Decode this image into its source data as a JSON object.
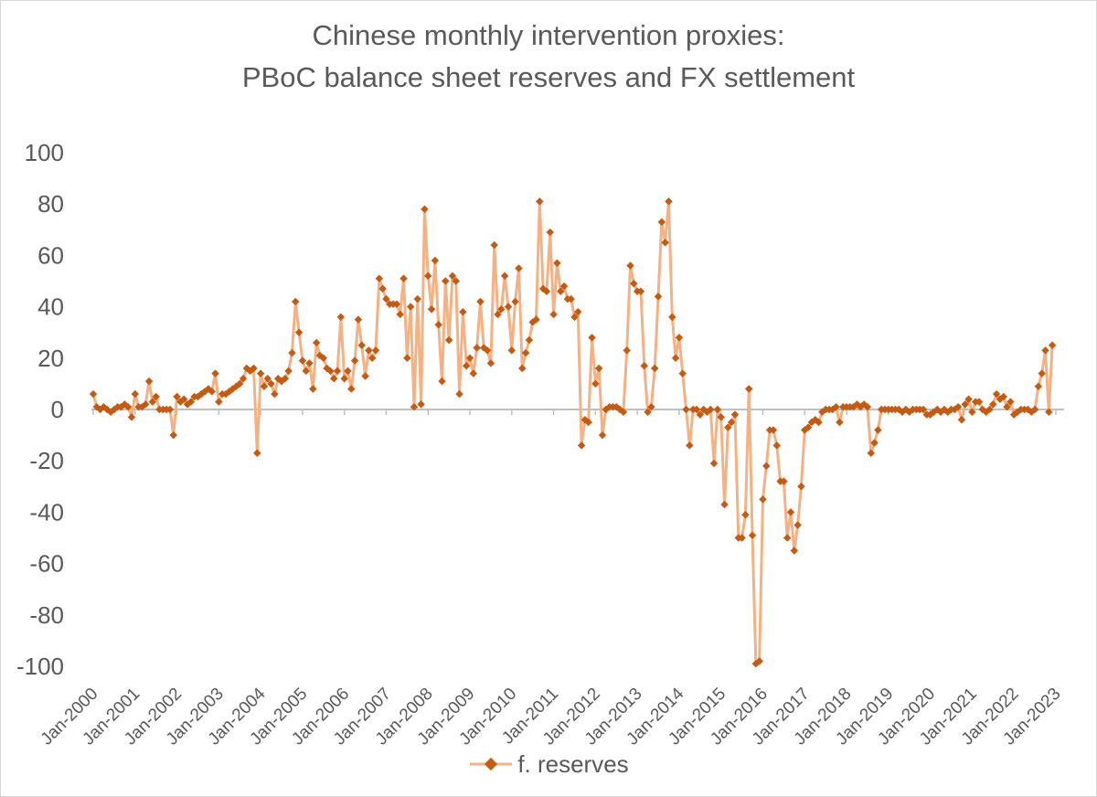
{
  "chart_data": {
    "type": "line",
    "title": "Chinese monthly intervention proxies:",
    "subtitle": "PBoC balance sheet reserves and FX settlement",
    "xlabel": "",
    "ylabel": "",
    "ylim": [
      -100,
      100
    ],
    "yticks": [
      "100",
      "80",
      "60",
      "40",
      "20",
      "0",
      "-20",
      "-40",
      "-60",
      "-80",
      "-100"
    ],
    "xticks": [
      "Jan-2000",
      "Jan-2001",
      "Jan-2002",
      "Jan-2003",
      "Jan-2004",
      "Jan-2005",
      "Jan-2006",
      "Jan-2007",
      "Jan-2008",
      "Jan-2009",
      "Jan-2010",
      "Jan-2011",
      "Jan-2012",
      "Jan-2013",
      "Jan-2014",
      "Jan-2015",
      "Jan-2016",
      "Jan-2017",
      "Jan-2018",
      "Jan-2019",
      "Jan-2020",
      "Jan-2021",
      "Jan-2022",
      "Jan-2023"
    ],
    "x_start": "Jan-2000",
    "frequency": "monthly",
    "grid": false,
    "legend_position": "bottom",
    "line_color": "#f4b183",
    "marker_color": "#c55a11",
    "axis_color": "#bfbfbf",
    "series": [
      {
        "name": "f. reserves",
        "values": [
          6,
          1,
          0,
          1,
          0,
          -1,
          0,
          1,
          1,
          2,
          1,
          -3,
          6,
          1,
          1,
          2,
          11,
          3,
          5,
          0,
          0,
          0,
          0,
          -10,
          5,
          3,
          4,
          2,
          3,
          5,
          5,
          6,
          7,
          8,
          7,
          14,
          3,
          6,
          6,
          7,
          8,
          9,
          10,
          12,
          16,
          15,
          16,
          -17,
          14,
          9,
          12,
          10,
          6,
          12,
          11,
          12,
          15,
          22,
          42,
          30,
          19,
          15,
          18,
          8,
          26,
          21,
          20,
          16,
          15,
          12,
          15,
          36,
          12,
          15,
          8,
          19,
          35,
          25,
          13,
          23,
          20,
          23,
          51,
          47,
          43,
          41,
          41,
          41,
          37,
          51,
          20,
          40,
          1,
          43,
          2,
          78,
          52,
          39,
          58,
          33,
          11,
          50,
          27,
          52,
          50,
          6,
          38,
          17,
          20,
          14,
          24,
          42,
          24,
          23,
          18,
          64,
          37,
          39,
          52,
          40,
          23,
          42,
          55,
          16,
          22,
          27,
          34,
          35,
          81,
          47,
          46,
          69,
          37,
          57,
          46,
          48,
          43,
          43,
          36,
          38,
          -14,
          -4,
          -5,
          28,
          10,
          16,
          -10,
          0,
          1,
          1,
          1,
          0,
          -1,
          23,
          56,
          49,
          46,
          46,
          17,
          -1,
          1,
          16,
          44,
          73,
          65,
          81,
          36,
          20,
          28,
          14,
          0,
          -14,
          0,
          0,
          -2,
          0,
          -1,
          0,
          -21,
          0,
          -3,
          -37,
          -7,
          -5,
          -2,
          -50,
          -50,
          -41,
          8,
          -49,
          -99,
          -98,
          -35,
          -22,
          -8,
          -8,
          -14,
          -28,
          -28,
          -50,
          -40,
          -55,
          -45,
          -30,
          -8,
          -7,
          -5,
          -4,
          -5,
          -1,
          0,
          0,
          0,
          1,
          -5,
          1,
          1,
          1,
          1,
          2,
          1,
          2,
          1,
          -17,
          -13,
          -8,
          0,
          0,
          0,
          0,
          0,
          0,
          -1,
          0,
          -1,
          0,
          0,
          0,
          0,
          -2,
          -2,
          -1,
          0,
          -1,
          0,
          -1,
          0,
          0,
          1,
          -4,
          2,
          4,
          -1,
          3,
          3,
          0,
          -1,
          0,
          2,
          6,
          4,
          5,
          1,
          3,
          -2,
          -1,
          0,
          0,
          0,
          -1,
          0,
          9,
          14,
          23,
          -1,
          25
        ]
      }
    ]
  }
}
